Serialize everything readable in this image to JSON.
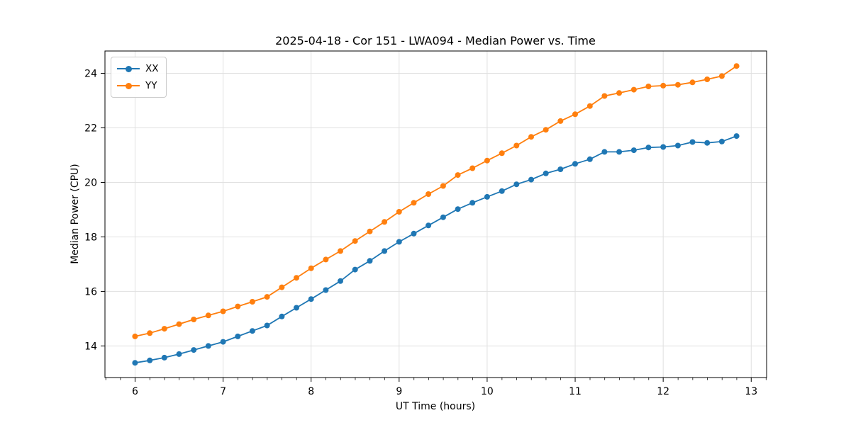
{
  "chart_data": {
    "type": "line",
    "title": "2025-04-18 - Cor 151 - LWA094 - Median Power vs. Time",
    "xlabel": "UT Time (hours)",
    "ylabel": "Median Power (CPU)",
    "xlim": [
      5.658,
      13.175
    ],
    "ylim": [
      12.84,
      24.82
    ],
    "x_ticks": [
      6,
      7,
      8,
      9,
      10,
      11,
      12,
      13
    ],
    "y_ticks": [
      14,
      16,
      18,
      20,
      22,
      24
    ],
    "x_minor_step": 0.1667,
    "grid": true,
    "legend_position": "upper-left",
    "x": [
      6.0,
      6.167,
      6.333,
      6.5,
      6.667,
      6.833,
      7.0,
      7.167,
      7.333,
      7.5,
      7.667,
      7.833,
      8.0,
      8.167,
      8.333,
      8.5,
      8.667,
      8.833,
      9.0,
      9.167,
      9.333,
      9.5,
      9.667,
      9.833,
      10.0,
      10.167,
      10.333,
      10.5,
      10.667,
      10.833,
      11.0,
      11.167,
      11.333,
      11.5,
      11.667,
      11.833,
      12.0,
      12.167,
      12.333,
      12.5,
      12.667,
      12.833
    ],
    "series": [
      {
        "name": "XX",
        "color": "#1f77b4",
        "values": [
          13.38,
          13.47,
          13.57,
          13.7,
          13.85,
          14.0,
          14.15,
          14.35,
          14.55,
          14.75,
          15.08,
          15.4,
          15.72,
          16.05,
          16.38,
          16.8,
          17.12,
          17.48,
          17.82,
          18.12,
          18.42,
          18.72,
          19.02,
          19.25,
          19.47,
          19.68,
          19.93,
          20.1,
          20.33,
          20.48,
          20.68,
          20.85,
          21.12,
          21.12,
          21.18,
          21.28,
          21.3,
          21.35,
          21.48,
          21.45,
          21.5,
          21.7
        ]
      },
      {
        "name": "YY",
        "color": "#ff7f0e",
        "values": [
          14.35,
          14.47,
          14.63,
          14.8,
          14.97,
          15.12,
          15.27,
          15.45,
          15.62,
          15.8,
          16.15,
          16.5,
          16.85,
          17.17,
          17.48,
          17.85,
          18.2,
          18.55,
          18.92,
          19.25,
          19.57,
          19.87,
          20.27,
          20.52,
          20.8,
          21.07,
          21.35,
          21.67,
          21.93,
          22.25,
          22.5,
          22.8,
          23.17,
          23.28,
          23.4,
          23.52,
          23.55,
          23.58,
          23.67,
          23.78,
          23.9,
          24.27
        ]
      }
    ]
  },
  "colors": {
    "background": "#ffffff",
    "axis": "#000000",
    "text": "#000000",
    "grid": "#e0e0e0",
    "legend_border": "#cccccc",
    "series_xx": "#1f77b4",
    "series_yy": "#ff7f0e"
  }
}
